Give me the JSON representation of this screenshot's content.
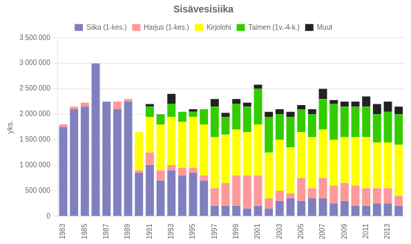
{
  "chart_data": {
    "type": "bar",
    "stacked": true,
    "title": "Sisävesisiika",
    "ylabel": "yks.",
    "categories": [
      "1983",
      null,
      "1985",
      null,
      "1987",
      null,
      "1989",
      null,
      "1991",
      null,
      "1993",
      null,
      "1995",
      null,
      "1997",
      null,
      "1999",
      null,
      "2001",
      null,
      "2003",
      null,
      "2005",
      null,
      "2007",
      null,
      "2009",
      null,
      "2011",
      null,
      "2013",
      null
    ],
    "series": [
      {
        "name": "Siika (1-kes.)",
        "color": "#8080C0",
        "values": [
          1750000,
          2100000,
          2150000,
          3000000,
          2250000,
          2100000,
          2250000,
          850000,
          1000000,
          700000,
          900000,
          800000,
          850000,
          700000,
          200000,
          200000,
          200000,
          150000,
          200000,
          150000,
          300000,
          350000,
          300000,
          350000,
          350000,
          250000,
          300000,
          200000,
          200000,
          250000,
          250000,
          200000
        ]
      },
      {
        "name": "Harjus (1-kes.)",
        "color": "#FF9999",
        "values": [
          50000,
          50000,
          80000,
          0,
          0,
          150000,
          50000,
          50000,
          250000,
          200000,
          100000,
          150000,
          100000,
          100000,
          350000,
          450000,
          600000,
          650000,
          600000,
          200000,
          200000,
          100000,
          450000,
          200000,
          400000,
          350000,
          350000,
          400000,
          350000,
          300000,
          300000,
          200000
        ]
      },
      {
        "name": "Kirjolohi",
        "color": "#FFFF00",
        "values": [
          0,
          0,
          0,
          0,
          0,
          0,
          0,
          750000,
          700000,
          900000,
          950000,
          900000,
          1000000,
          1000000,
          1000000,
          950000,
          900000,
          850000,
          1000000,
          900000,
          1000000,
          900000,
          900000,
          1000000,
          950000,
          900000,
          900000,
          950000,
          1000000,
          900000,
          900000,
          1000000
        ]
      },
      {
        "name": "Taimen (1v.-4-k.)",
        "color": "#33CC00",
        "values": [
          0,
          0,
          0,
          0,
          0,
          0,
          0,
          0,
          200000,
          200000,
          250000,
          200000,
          100000,
          300000,
          600000,
          350000,
          500000,
          500000,
          700000,
          700000,
          500000,
          600000,
          450000,
          450000,
          600000,
          700000,
          600000,
          600000,
          600000,
          550000,
          600000,
          600000
        ]
      },
      {
        "name": "Muut",
        "color": "#222222",
        "values": [
          0,
          0,
          0,
          0,
          0,
          0,
          0,
          0,
          50000,
          0,
          200000,
          0,
          50000,
          0,
          150000,
          80000,
          100000,
          80000,
          80000,
          100000,
          100000,
          100000,
          80000,
          100000,
          200000,
          80000,
          100000,
          100000,
          200000,
          200000,
          200000,
          150000
        ]
      }
    ],
    "ylim": [
      0,
      3500000
    ],
    "yticks": [
      0,
      {
        "value": 500000,
        "label": "500 000"
      },
      {
        "value": 1000000,
        "label": "1 000 000"
      },
      {
        "value": 1500000,
        "label": "1 500 000"
      },
      {
        "value": 2000000,
        "label": "2 000 000"
      },
      {
        "value": 2500000,
        "label": "2 500 000"
      },
      {
        "value": 3000000,
        "label": "3 000 000"
      },
      {
        "value": 3500000,
        "label": "3 500 000"
      }
    ],
    "grid": true,
    "legend": "top"
  }
}
